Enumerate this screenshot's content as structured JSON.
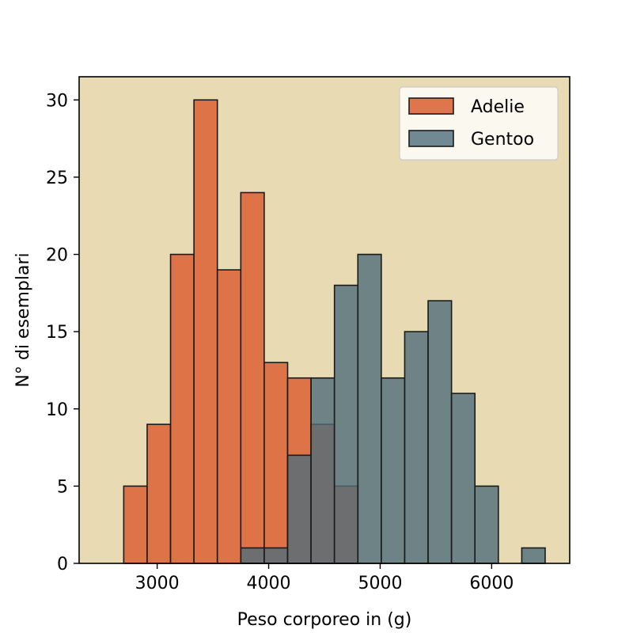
{
  "chart_data": {
    "type": "bar",
    "title": "",
    "xlabel": "Peso corporeo in (g)",
    "ylabel": "N° di esemplari",
    "xlim": [
      2300,
      6700
    ],
    "ylim": [
      0,
      31.5
    ],
    "xticks": [
      3000,
      4000,
      5000,
      6000
    ],
    "yticks": [
      0,
      5,
      10,
      15,
      20,
      25,
      30
    ],
    "legend_position": "top-right",
    "background_color": "#e8dab2",
    "series": [
      {
        "name": "Adelie",
        "color": "#dd6e42",
        "bins": [
          {
            "x0": 2700,
            "x1": 2910,
            "count": 5
          },
          {
            "x0": 2910,
            "x1": 3120,
            "count": 9
          },
          {
            "x0": 3120,
            "x1": 3330,
            "count": 20
          },
          {
            "x0": 3330,
            "x1": 3540,
            "count": 30
          },
          {
            "x0": 3540,
            "x1": 3750,
            "count": 19
          },
          {
            "x0": 3750,
            "x1": 3960,
            "count": 24
          },
          {
            "x0": 3960,
            "x1": 4170,
            "count": 13
          },
          {
            "x0": 4170,
            "x1": 4380,
            "count": 12
          },
          {
            "x0": 4380,
            "x1": 4590,
            "count": 9
          },
          {
            "x0": 4590,
            "x1": 4800,
            "count": 5
          }
        ]
      },
      {
        "name": "Gentoo",
        "color": "#4f6d7a",
        "bins": [
          {
            "x0": 3750,
            "x1": 3960,
            "count": 1
          },
          {
            "x0": 3960,
            "x1": 4170,
            "count": 1
          },
          {
            "x0": 4170,
            "x1": 4380,
            "count": 7
          },
          {
            "x0": 4380,
            "x1": 4590,
            "count": 12
          },
          {
            "x0": 4590,
            "x1": 4800,
            "count": 18
          },
          {
            "x0": 4800,
            "x1": 5010,
            "count": 20
          },
          {
            "x0": 5010,
            "x1": 5220,
            "count": 12
          },
          {
            "x0": 5220,
            "x1": 5430,
            "count": 15
          },
          {
            "x0": 5430,
            "x1": 5640,
            "count": 17
          },
          {
            "x0": 5640,
            "x1": 5850,
            "count": 11
          },
          {
            "x0": 5850,
            "x1": 6060,
            "count": 5
          },
          {
            "x0": 6060,
            "x1": 6270,
            "count": 0
          },
          {
            "x0": 6270,
            "x1": 6480,
            "count": 1
          }
        ]
      }
    ]
  }
}
